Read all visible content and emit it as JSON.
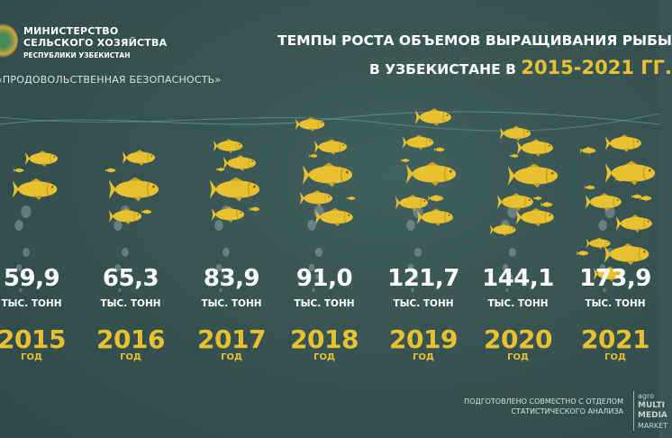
{
  "header": {
    "ministry_line1": "МИНИСТЕРСТВО",
    "ministry_line2": "СЕЛЬСКОГО ХОЗЯЙСТВА",
    "ministry_line3": "РЕСПУБЛИКИ УЗБЕКИСТАН",
    "subtitle": "«ПРОДОВОЛЬСТВЕННАЯ БЕЗОПАСНОСТЬ»",
    "title_line1": "ТЕМПЫ РОСТА ОБЪЕМОВ ВЫРАЩИВАНИЯ РЫБЫ",
    "title_line2_prefix": "В УЗБЕКИСТАНЕ В ",
    "title_years": "2015-2021 ГГ."
  },
  "chart_data": {
    "type": "table",
    "title": "ТЕМПЫ РОСТА ОБЪЕМОВ ВЫРАЩИВАНИЯ РЫБЫ В УЗБЕКИСТАНЕ В 2015-2021 ГГ.",
    "categories": [
      "2015",
      "2016",
      "2017",
      "2018",
      "2019",
      "2020",
      "2021"
    ],
    "values": [
      59.9,
      65.3,
      83.9,
      91.0,
      121.7,
      144.1,
      173.9
    ],
    "value_labels": [
      "59,9",
      "65,3",
      "83,9",
      "91,0",
      "121,7",
      "144,1",
      "173,9"
    ],
    "unit": "ТЫС. ТОНН",
    "year_suffix": "ГОД"
  },
  "colors": {
    "background": "#3a5558",
    "accent": "#e8c130",
    "text": "#ffffff"
  },
  "icons": {
    "logo": "uzbekistan-emblem-icon",
    "fish": "fish-icon",
    "bubbles": "bubbles-icon"
  },
  "footer": {
    "line1": "ПОДГОТОВЛЕНО СОВМЕСТНО С ОТДЕЛОМ",
    "line2": "СТАТИСТИЧЕСКОГО АНАЛИЗА",
    "brand1": "agro",
    "brand2": "MULTI",
    "brand3": "MEDIA",
    "brand4": "MARKET"
  }
}
